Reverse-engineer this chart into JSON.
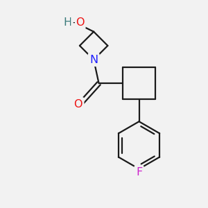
{
  "background_color": "#f2f2f2",
  "bond_color": "#1a1a1a",
  "bond_width": 1.6,
  "atom_colors": {
    "N": "#2020ff",
    "O_carbonyl": "#ee1111",
    "O_hydroxy": "#ee1111",
    "H": "#3a7a7a",
    "F": "#cc22cc",
    "C": "#1a1a1a"
  },
  "font_size": 11.5
}
